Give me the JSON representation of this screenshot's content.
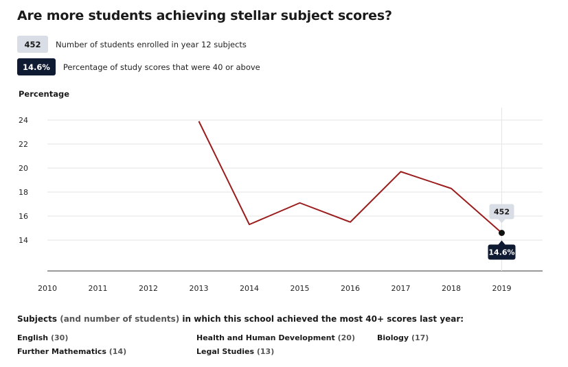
{
  "title": "Are more students achieving stellar subject scores?",
  "legend": {
    "enrolled": {
      "badge": "452",
      "text": "Number of students enrolled in year 12 subjects"
    },
    "percentage": {
      "badge": "14.6%",
      "text": "Percentage of study scores that were 40 or above"
    }
  },
  "colors": {
    "line": "#9b1c1c",
    "dark_badge": "#0f1a33",
    "light_badge": "#d9dde5",
    "grid": "#e3e3e3"
  },
  "chart_data": {
    "type": "line",
    "ylabel": "Percentage",
    "xlabel": "",
    "x": [
      "2010",
      "2011",
      "2012",
      "2013",
      "2014",
      "2015",
      "2016",
      "2017",
      "2018",
      "2019"
    ],
    "series": [
      {
        "values": [
          null,
          null,
          null,
          23.9,
          15.3,
          17.1,
          15.5,
          19.7,
          18.3,
          14.6
        ]
      }
    ],
    "yticks": [
      14,
      16,
      18,
      20,
      22,
      24
    ],
    "ylim": [
      11.5,
      25
    ],
    "grid": true,
    "highlight": {
      "x": "2019",
      "value_label": "14.6%",
      "enrolled_label": "452"
    }
  },
  "subjects": {
    "heading": "Subjects",
    "heading_paren": "(and number of students)",
    "heading_rest": "in which this school achieved the most 40+ scores last year:",
    "items": [
      {
        "name": "English",
        "count": "(30)"
      },
      {
        "name": "Health and Human Development",
        "count": "(20)"
      },
      {
        "name": "Biology",
        "count": "(17)"
      },
      {
        "name": "Further Mathematics",
        "count": "(14)"
      },
      {
        "name": "Legal Studies",
        "count": "(13)"
      }
    ]
  }
}
